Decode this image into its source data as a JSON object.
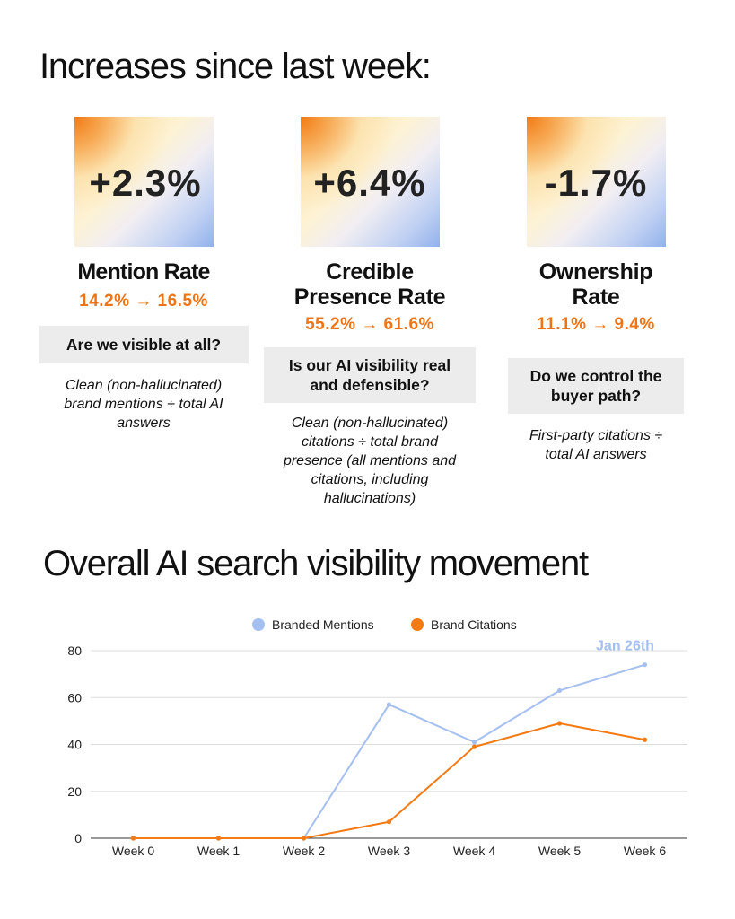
{
  "headline": "Increases since last week:",
  "metrics": [
    {
      "change": "+2.3%",
      "name": "Mention Rate",
      "range": "14.2% → 16.5%",
      "question": "Are we visible at all?",
      "description": "Clean (non-hallucinated) brand mentions ÷ total AI answers"
    },
    {
      "change": "+6.4%",
      "name": "Credible Presence Rate",
      "range": "55.2% → 61.6%",
      "question": "Is our AI visibility real and defensible?",
      "description": "Clean (non-hallucinated) citations ÷ total brand presence (all mentions and citations, including hallucinations)"
    },
    {
      "change": "-1.7%",
      "name": "Ownership Rate",
      "range": "11.1% → 9.4%",
      "question": "Do we control the buyer path?",
      "description": "First-party citations ÷ total AI answers"
    }
  ],
  "chart_title": "Overall AI search visibility movement",
  "chart_data": {
    "type": "line",
    "categories": [
      "Week 0",
      "Week 1",
      "Week 2",
      "Week 3",
      "Week 4",
      "Week 5",
      "Week 6"
    ],
    "series": [
      {
        "name": "Branded Mentions",
        "color": "#a4bff0",
        "values": [
          0,
          0,
          0,
          57,
          41,
          63,
          74
        ]
      },
      {
        "name": "Brand Citations",
        "color": "#f47a14",
        "values": [
          0,
          0,
          0,
          7,
          39,
          49,
          42
        ]
      }
    ],
    "yticks": [
      0,
      20,
      40,
      60,
      80
    ],
    "ylim": [
      0,
      80
    ],
    "grid": true,
    "legend": "top-center",
    "annotation": {
      "text": "Jan 26th",
      "series": "Branded Mentions",
      "category": "Week 6",
      "color": "#a4bff0"
    }
  }
}
